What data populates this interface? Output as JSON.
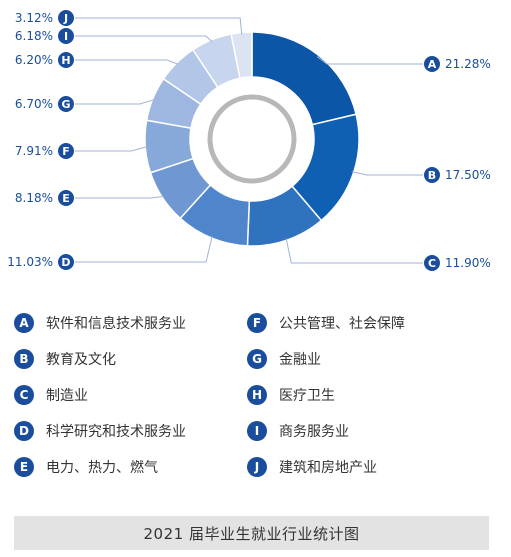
{
  "chart_data": {
    "type": "pie",
    "title": "2021 届毕业生就业行业统计图",
    "slices": [
      {
        "key": "A",
        "label": "软件和信息技术服务业",
        "value": 21.28,
        "value_label": "21.28%",
        "color": "#0b56a6"
      },
      {
        "key": "B",
        "label": "教育及文化",
        "value": 17.5,
        "value_label": "17.50%",
        "color": "#0f5fb2"
      },
      {
        "key": "C",
        "label": "制造业",
        "value": 11.9,
        "value_label": "11.90%",
        "color": "#2f73bf"
      },
      {
        "key": "D",
        "label": "科学研究和技术服务业",
        "value": 11.03,
        "value_label": "11.03%",
        "color": "#4f86cb"
      },
      {
        "key": "E",
        "label": "电力、热力、燃气",
        "value": 8.18,
        "value_label": "8.18%",
        "color": "#6f98d3"
      },
      {
        "key": "F",
        "label": "公共管理、社会保障",
        "value": 7.91,
        "value_label": "7.91%",
        "color": "#87a9da"
      },
      {
        "key": "G",
        "label": "金融业",
        "value": 6.7,
        "value_label": "6.70%",
        "color": "#9db7e1"
      },
      {
        "key": "H",
        "label": "医疗卫生",
        "value": 6.2,
        "value_label": "6.20%",
        "color": "#b2c6e8"
      },
      {
        "key": "I",
        "label": "商务服务业",
        "value": 6.18,
        "value_label": "6.18%",
        "color": "#c7d5ee"
      },
      {
        "key": "J",
        "label": "建筑和房地产业",
        "value": 3.12,
        "value_label": "3.12%",
        "color": "#dce4f4"
      }
    ],
    "legend_position": "bottom"
  },
  "colors": {
    "badge": "#1a4e9c",
    "label_text": "#1a4e9c",
    "leader_line": "#9fb3d6",
    "inner_ring": "#b8b8b8",
    "footer_bg": "#e3e3e3"
  }
}
